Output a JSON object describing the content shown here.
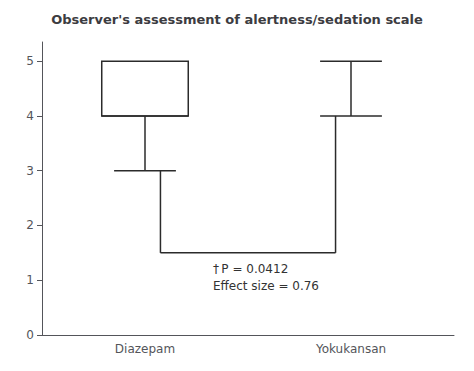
{
  "chart_data": {
    "type": "boxplot",
    "title": "Observer's assessment of alertness/sedation scale",
    "categories": [
      "Diazepam",
      "Yokukansan"
    ],
    "boxes": [
      {
        "whisker_low": 3.0,
        "q1": 4.0,
        "median": 4.0,
        "q3": 5.0,
        "whisker_high": 5.0
      },
      {
        "whisker_low": 4.0,
        "whisker_high": 5.0
      }
    ],
    "bracket_y": 1.5,
    "annotations": [
      "† P = 0.0412",
      "Effect size = 0.76"
    ],
    "ylim": [
      0,
      5.35
    ],
    "yticks": [
      0,
      1,
      2,
      3,
      4,
      5
    ],
    "grid": false,
    "color": "#2b2b2b"
  }
}
